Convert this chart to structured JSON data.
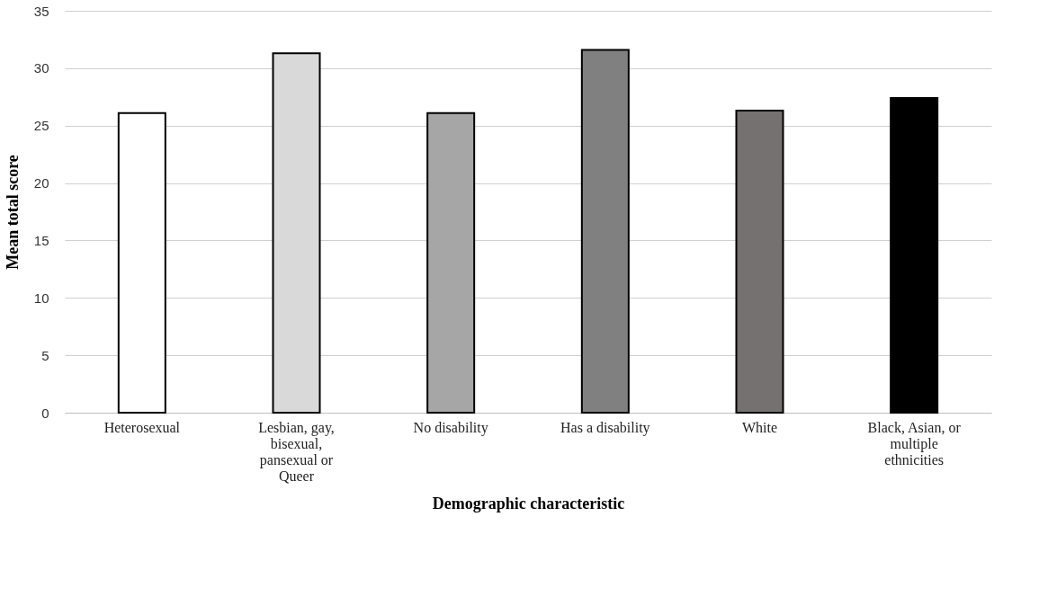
{
  "chart_data": {
    "type": "bar",
    "xlabel": "Demographic  characteristic",
    "ylabel": "Mean  total  score",
    "categories": [
      "Heterosexual",
      "Lesbian, gay, bisexual, pansexual or Queer",
      "No disability",
      "Has a disability",
      "White",
      "Black, Asian, or multiple ethnicities"
    ],
    "values": [
      26.1,
      31.3,
      26.1,
      31.6,
      26.3,
      27.4
    ],
    "colors": [
      "#ffffff",
      "#d9d9d9",
      "#a6a6a6",
      "#808080",
      "#767171",
      "#000000"
    ],
    "ylim": [
      0,
      35
    ],
    "yticks": [
      0,
      5,
      10,
      15,
      20,
      25,
      30,
      35
    ],
    "grid": "y"
  }
}
